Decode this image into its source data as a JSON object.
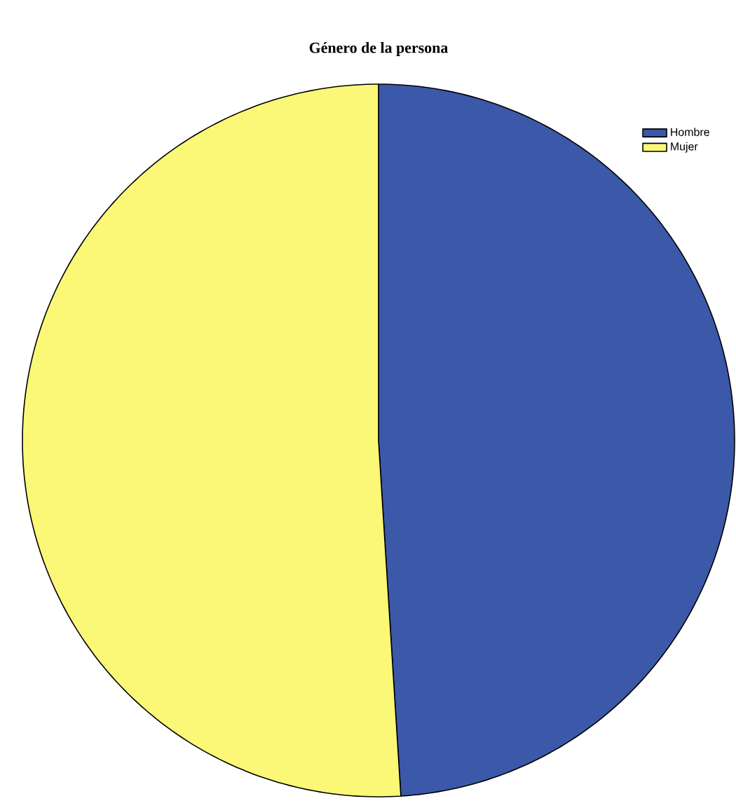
{
  "chart_data": {
    "type": "pie",
    "title": "Género de la persona",
    "categories": [
      "Hombre",
      "Mujer"
    ],
    "values": [
      49,
      51
    ],
    "colors": [
      "#3c58a8",
      "#fbf777"
    ],
    "legend": "top right"
  }
}
